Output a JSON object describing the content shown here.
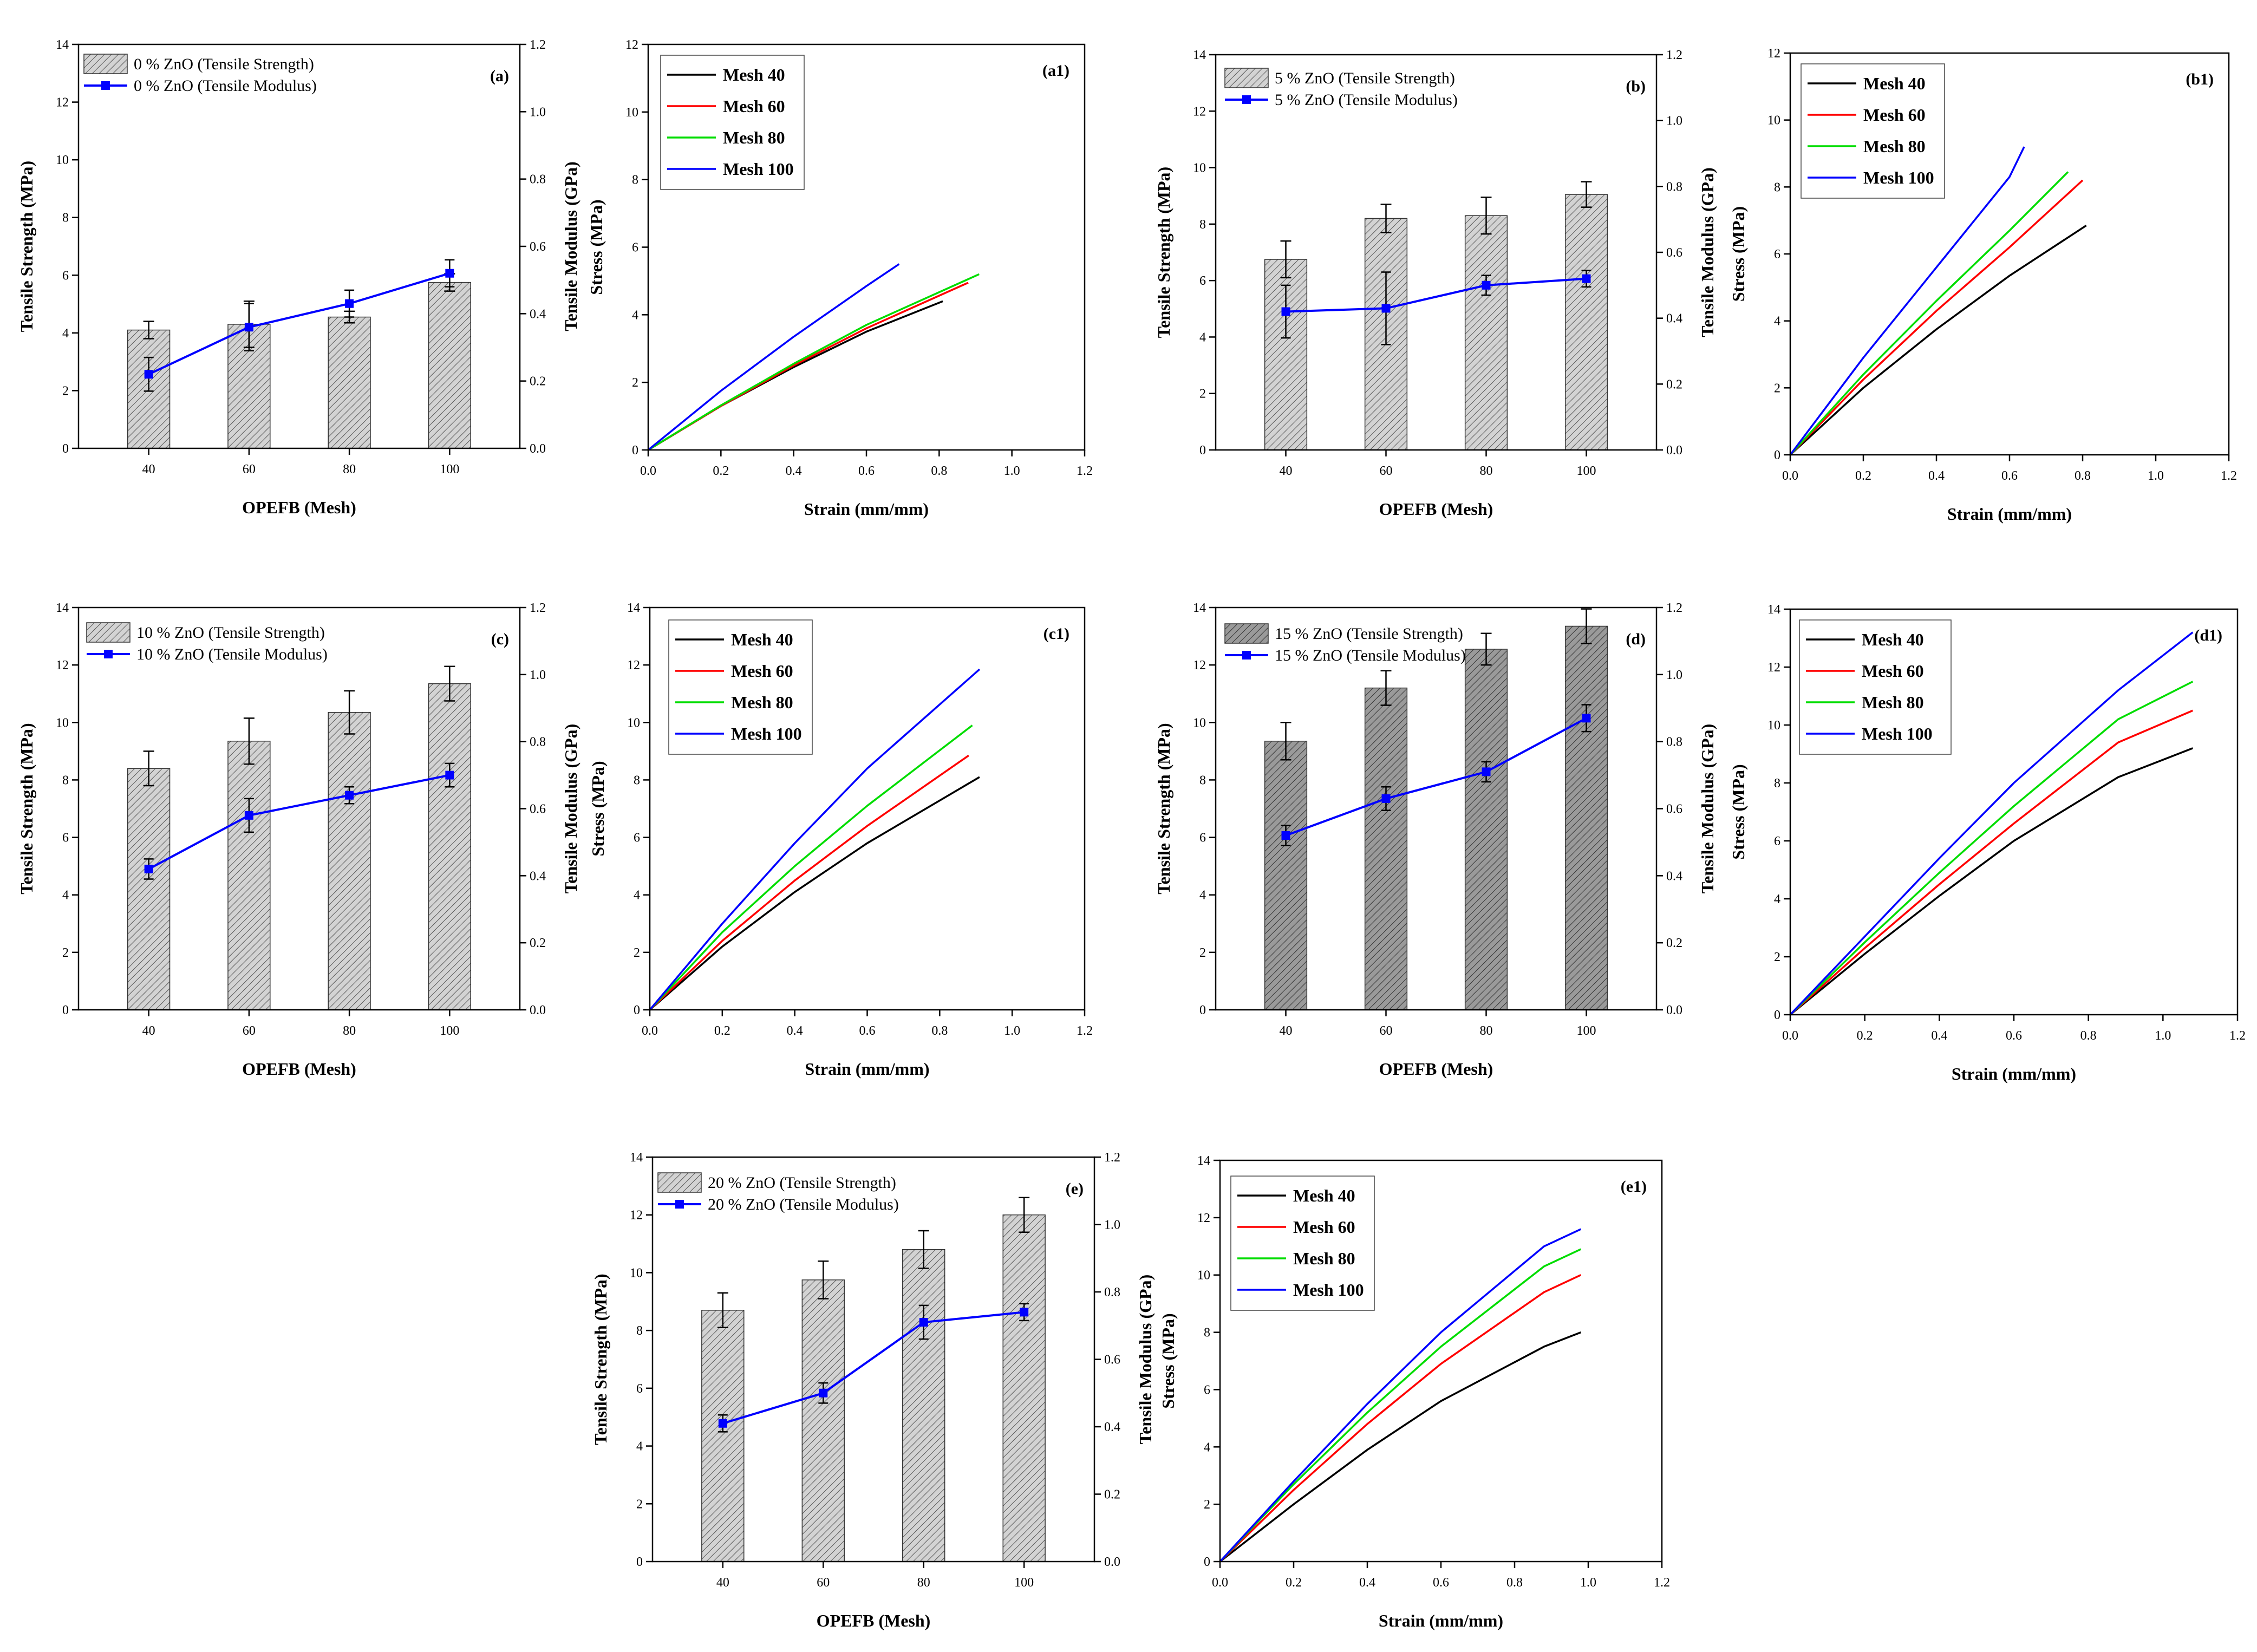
{
  "colors": {
    "mesh40": "#000000",
    "mesh60": "#ff0000",
    "mesh80": "#00dd00",
    "mesh100": "#0000ff",
    "modulus": "#0000ff",
    "bar_fill": "#d3d3d3",
    "bar_fill_dark": "#9a9a9a"
  },
  "chart_data": [
    {
      "id": "a",
      "type": "bar",
      "label": "(a)",
      "categories": [
        "40",
        "60",
        "80",
        "100"
      ],
      "xlabel": "OPEFB (Mesh)",
      "ylabel": "Tensile Strength (MPa)",
      "y2label": "Tensile Modulus (GPa)",
      "ylim": [
        0,
        14
      ],
      "y2lim": [
        0,
        1.2
      ],
      "yticks": [
        "0",
        "2",
        "4",
        "6",
        "8",
        "10",
        "12",
        "14"
      ],
      "y2ticks": [
        "0.0",
        "0.2",
        "0.4",
        "0.6",
        "0.8",
        "1.0",
        "1.2"
      ],
      "legend": [
        "0 % ZnO (Tensile Strength)",
        "0 % ZnO (Tensile Modulus)"
      ],
      "bar_shade": "light",
      "series": [
        {
          "name": "0 % ZnO (Tensile Strength)",
          "axis": "left",
          "values": [
            4.1,
            4.3,
            4.55,
            5.75
          ],
          "errors": [
            0.3,
            0.8,
            0.2,
            0.3
          ]
        },
        {
          "name": "0 % ZnO (Tensile Modulus)",
          "axis": "right",
          "values": [
            0.22,
            0.36,
            0.43,
            0.52
          ],
          "errors": [
            0.05,
            0.07,
            0.04,
            0.04
          ]
        }
      ]
    },
    {
      "id": "a1",
      "type": "line",
      "label": "(a1)",
      "xlabel": "Strain (mm/mm)",
      "ylabel": "Stress (MPa)",
      "xlim": [
        0,
        1.2
      ],
      "ylim": [
        0,
        12
      ],
      "xticks": [
        "0.0",
        "0.2",
        "0.4",
        "0.6",
        "0.8",
        "1.0",
        "1.2"
      ],
      "yticks": [
        "0",
        "2",
        "4",
        "6",
        "8",
        "10",
        "12"
      ],
      "legend_rows": 4,
      "series": [
        {
          "name": "Mesh 40",
          "color_key": "mesh40",
          "x": [
            0,
            0.2,
            0.4,
            0.6,
            0.81
          ],
          "y": [
            0,
            1.3,
            2.45,
            3.5,
            4.4
          ]
        },
        {
          "name": "Mesh 60",
          "color_key": "mesh60",
          "x": [
            0,
            0.2,
            0.4,
            0.6,
            0.88
          ],
          "y": [
            0,
            1.3,
            2.5,
            3.6,
            4.95
          ]
        },
        {
          "name": "Mesh 80",
          "color_key": "mesh80",
          "x": [
            0,
            0.2,
            0.4,
            0.6,
            0.91
          ],
          "y": [
            0,
            1.32,
            2.55,
            3.7,
            5.2
          ]
        },
        {
          "name": "Mesh 100",
          "color_key": "mesh100",
          "x": [
            0,
            0.2,
            0.4,
            0.6,
            0.69
          ],
          "y": [
            0,
            1.75,
            3.35,
            4.85,
            5.5
          ]
        }
      ]
    },
    {
      "id": "b",
      "type": "bar",
      "label": "(b)",
      "categories": [
        "40",
        "60",
        "80",
        "100"
      ],
      "xlabel": "OPEFB (Mesh)",
      "ylabel": "Tensile Strength (MPa)",
      "y2label": "Tensile Modulus (GPa)",
      "ylim": [
        0,
        14
      ],
      "y2lim": [
        0,
        1.2
      ],
      "yticks": [
        "0",
        "2",
        "4",
        "6",
        "8",
        "10",
        "12",
        "14"
      ],
      "y2ticks": [
        "0.0",
        "0.2",
        "0.4",
        "0.6",
        "0.8",
        "1.0",
        "1.2"
      ],
      "legend": [
        "5 % ZnO (Tensile Strength)",
        "5 % ZnO (Tensile Modulus)"
      ],
      "bar_shade": "light",
      "series": [
        {
          "name": "5 % ZnO (Tensile Strength)",
          "axis": "left",
          "values": [
            6.75,
            8.2,
            8.3,
            9.05
          ],
          "errors": [
            0.65,
            0.5,
            0.65,
            0.45
          ]
        },
        {
          "name": "5 % ZnO (Tensile Modulus)",
          "axis": "right",
          "values": [
            0.42,
            0.43,
            0.5,
            0.52
          ],
          "errors": [
            0.08,
            0.11,
            0.03,
            0.025
          ]
        }
      ]
    },
    {
      "id": "b1",
      "type": "line",
      "label": "(b1)",
      "xlabel": "Strain (mm/mm)",
      "ylabel": "Stress (MPa)",
      "xlim": [
        0,
        1.2
      ],
      "ylim": [
        0,
        12
      ],
      "xticks": [
        "0.0",
        "0.2",
        "0.4",
        "0.6",
        "0.8",
        "1.0",
        "1.2"
      ],
      "yticks": [
        "0",
        "2",
        "4",
        "6",
        "8",
        "10",
        "12"
      ],
      "legend_rows": 4,
      "series": [
        {
          "name": "Mesh 40",
          "color_key": "mesh40",
          "x": [
            0,
            0.2,
            0.4,
            0.6,
            0.81
          ],
          "y": [
            0,
            2.0,
            3.75,
            5.35,
            6.85
          ]
        },
        {
          "name": "Mesh 60",
          "color_key": "mesh60",
          "x": [
            0,
            0.2,
            0.4,
            0.6,
            0.8
          ],
          "y": [
            0,
            2.25,
            4.3,
            6.2,
            8.2
          ]
        },
        {
          "name": "Mesh 80",
          "color_key": "mesh80",
          "x": [
            0,
            0.2,
            0.4,
            0.6,
            0.76
          ],
          "y": [
            0,
            2.4,
            4.6,
            6.7,
            8.45
          ]
        },
        {
          "name": "Mesh 100",
          "color_key": "mesh100",
          "x": [
            0,
            0.2,
            0.4,
            0.6,
            0.64
          ],
          "y": [
            0,
            2.9,
            5.6,
            8.3,
            9.2
          ]
        }
      ]
    },
    {
      "id": "c",
      "type": "bar",
      "label": "(c)",
      "categories": [
        "40",
        "60",
        "80",
        "100"
      ],
      "xlabel": "OPEFB (Mesh)",
      "ylabel": "Tensile Strength (MPa)",
      "y2label": "Tensile Modulus (GPa)",
      "ylim": [
        0,
        14
      ],
      "y2lim": [
        0,
        1.2
      ],
      "yticks": [
        "0",
        "2",
        "4",
        "6",
        "8",
        "10",
        "12",
        "14"
      ],
      "y2ticks": [
        "0.0",
        "0.2",
        "0.4",
        "0.6",
        "0.8",
        "1.0",
        "1.2"
      ],
      "legend": [
        "10 % ZnO (Tensile Strength)",
        "10 % ZnO (Tensile Modulus)"
      ],
      "bar_shade": "light",
      "series": [
        {
          "name": "10 % ZnO (Tensile Strength)",
          "axis": "left",
          "values": [
            8.4,
            9.35,
            10.35,
            11.35
          ],
          "errors": [
            0.6,
            0.8,
            0.75,
            0.6
          ]
        },
        {
          "name": "10 % ZnO (Tensile Modulus)",
          "axis": "right",
          "values": [
            0.42,
            0.58,
            0.64,
            0.7
          ],
          "errors": [
            0.03,
            0.05,
            0.025,
            0.035
          ]
        }
      ]
    },
    {
      "id": "c1",
      "type": "line",
      "label": "(c1)",
      "xlabel": "Strain (mm/mm)",
      "ylabel": "Stress (MPa)",
      "xlim": [
        0,
        1.2
      ],
      "ylim": [
        0,
        14
      ],
      "xticks": [
        "0.0",
        "0.2",
        "0.4",
        "0.6",
        "0.8",
        "1.0",
        "1.2"
      ],
      "yticks": [
        "0",
        "2",
        "4",
        "6",
        "8",
        "10",
        "12",
        "14"
      ],
      "legend_rows": 4,
      "series": [
        {
          "name": "Mesh 40",
          "color_key": "mesh40",
          "x": [
            0,
            0.2,
            0.4,
            0.6,
            0.91
          ],
          "y": [
            0,
            2.2,
            4.1,
            5.8,
            8.1
          ]
        },
        {
          "name": "Mesh 60",
          "color_key": "mesh60",
          "x": [
            0,
            0.2,
            0.4,
            0.6,
            0.88
          ],
          "y": [
            0,
            2.4,
            4.5,
            6.4,
            8.85
          ]
        },
        {
          "name": "Mesh 80",
          "color_key": "mesh80",
          "x": [
            0,
            0.2,
            0.4,
            0.6,
            0.89
          ],
          "y": [
            0,
            2.7,
            5.0,
            7.1,
            9.9
          ]
        },
        {
          "name": "Mesh 100",
          "color_key": "mesh100",
          "x": [
            0,
            0.2,
            0.4,
            0.6,
            0.91
          ],
          "y": [
            0,
            3.0,
            5.8,
            8.4,
            11.85
          ]
        }
      ]
    },
    {
      "id": "d",
      "type": "bar",
      "label": "(d)",
      "categories": [
        "40",
        "60",
        "80",
        "100"
      ],
      "xlabel": "OPEFB (Mesh)",
      "ylabel": "Tensile Strength (MPa)",
      "y2label": "Tensile Modulus (GPa)",
      "ylim": [
        0,
        14
      ],
      "y2lim": [
        0,
        1.2
      ],
      "yticks": [
        "0",
        "2",
        "4",
        "6",
        "8",
        "10",
        "12",
        "14"
      ],
      "y2ticks": [
        "0.0",
        "0.2",
        "0.4",
        "0.6",
        "0.8",
        "1.0",
        "1.2"
      ],
      "legend": [
        "15 % ZnO (Tensile Strength)",
        "15 % ZnO (Tensile Modulus)"
      ],
      "bar_shade": "dark",
      "series": [
        {
          "name": "15 % ZnO (Tensile Strength)",
          "axis": "left",
          "values": [
            9.35,
            11.2,
            12.55,
            13.35
          ],
          "errors": [
            0.65,
            0.6,
            0.55,
            0.6
          ]
        },
        {
          "name": "15 % ZnO (Tensile Modulus)",
          "axis": "right",
          "values": [
            0.52,
            0.63,
            0.71,
            0.87
          ],
          "errors": [
            0.03,
            0.035,
            0.03,
            0.04
          ]
        }
      ]
    },
    {
      "id": "d1",
      "type": "line",
      "label": "(d1)",
      "xlabel": "Strain (mm/mm)",
      "ylabel": "Stress (MPa)",
      "xlim": [
        0,
        1.2
      ],
      "ylim": [
        0,
        14
      ],
      "xticks": [
        "0.0",
        "0.2",
        "0.4",
        "0.6",
        "0.8",
        "1.0",
        "1.2"
      ],
      "yticks": [
        "0",
        "2",
        "4",
        "6",
        "8",
        "10",
        "12",
        "14"
      ],
      "legend_rows": 4,
      "series": [
        {
          "name": "Mesh 40",
          "color_key": "mesh40",
          "x": [
            0,
            0.2,
            0.4,
            0.6,
            0.88,
            1.08
          ],
          "y": [
            0,
            2.1,
            4.1,
            6.0,
            8.2,
            9.2
          ]
        },
        {
          "name": "Mesh 60",
          "color_key": "mesh60",
          "x": [
            0,
            0.2,
            0.4,
            0.6,
            0.88,
            1.08
          ],
          "y": [
            0,
            2.3,
            4.5,
            6.6,
            9.4,
            10.5
          ]
        },
        {
          "name": "Mesh 80",
          "color_key": "mesh80",
          "x": [
            0,
            0.2,
            0.4,
            0.6,
            0.88,
            1.08
          ],
          "y": [
            0,
            2.5,
            4.9,
            7.2,
            10.2,
            11.5
          ]
        },
        {
          "name": "Mesh 100",
          "color_key": "mesh100",
          "x": [
            0,
            0.2,
            0.4,
            0.6,
            0.88,
            1.08
          ],
          "y": [
            0,
            2.7,
            5.4,
            8.0,
            11.2,
            13.2
          ]
        }
      ]
    },
    {
      "id": "e",
      "type": "bar",
      "label": "(e)",
      "categories": [
        "40",
        "60",
        "80",
        "100"
      ],
      "xlabel": "OPEFB (Mesh)",
      "ylabel": "Tensile Strength (MPa)",
      "y2label": "Tensile Modulus (GPa)",
      "ylim": [
        0,
        14
      ],
      "y2lim": [
        0,
        1.2
      ],
      "yticks": [
        "0",
        "2",
        "4",
        "6",
        "8",
        "10",
        "12",
        "14"
      ],
      "y2ticks": [
        "0.0",
        "0.2",
        "0.4",
        "0.6",
        "0.8",
        "1.0",
        "1.2"
      ],
      "legend": [
        "20 % ZnO (Tensile Strength)",
        "20 % ZnO (Tensile Modulus)"
      ],
      "bar_shade": "light",
      "series": [
        {
          "name": "20 % ZnO (Tensile Strength)",
          "axis": "left",
          "values": [
            8.7,
            9.75,
            10.8,
            12.0
          ],
          "errors": [
            0.6,
            0.65,
            0.65,
            0.6
          ]
        },
        {
          "name": "20 % ZnO (Tensile Modulus)",
          "axis": "right",
          "values": [
            0.41,
            0.5,
            0.71,
            0.74
          ],
          "errors": [
            0.025,
            0.03,
            0.05,
            0.025
          ]
        }
      ]
    },
    {
      "id": "e1",
      "type": "line",
      "label": "(e1)",
      "xlabel": "Strain (mm/mm)",
      "ylabel": "Stress (MPa)",
      "xlim": [
        0,
        1.2
      ],
      "ylim": [
        0,
        14
      ],
      "xticks": [
        "0.0",
        "0.2",
        "0.4",
        "0.6",
        "0.8",
        "1.0",
        "1.2"
      ],
      "yticks": [
        "0",
        "2",
        "4",
        "6",
        "8",
        "10",
        "12",
        "14"
      ],
      "legend_rows": 4,
      "series": [
        {
          "name": "Mesh 40",
          "color_key": "mesh40",
          "x": [
            0,
            0.2,
            0.4,
            0.6,
            0.88,
            0.98
          ],
          "y": [
            0,
            2.0,
            3.9,
            5.6,
            7.5,
            8.0
          ]
        },
        {
          "name": "Mesh 60",
          "color_key": "mesh60",
          "x": [
            0,
            0.2,
            0.4,
            0.6,
            0.88,
            0.98
          ],
          "y": [
            0,
            2.5,
            4.8,
            6.9,
            9.4,
            10.0
          ]
        },
        {
          "name": "Mesh 80",
          "color_key": "mesh80",
          "x": [
            0,
            0.2,
            0.4,
            0.6,
            0.88,
            0.98
          ],
          "y": [
            0,
            2.7,
            5.2,
            7.5,
            10.3,
            10.9
          ]
        },
        {
          "name": "Mesh 100",
          "color_key": "mesh100",
          "x": [
            0,
            0.2,
            0.4,
            0.6,
            0.88,
            0.98
          ],
          "y": [
            0,
            2.8,
            5.5,
            8.0,
            11.0,
            11.6
          ]
        }
      ]
    }
  ]
}
